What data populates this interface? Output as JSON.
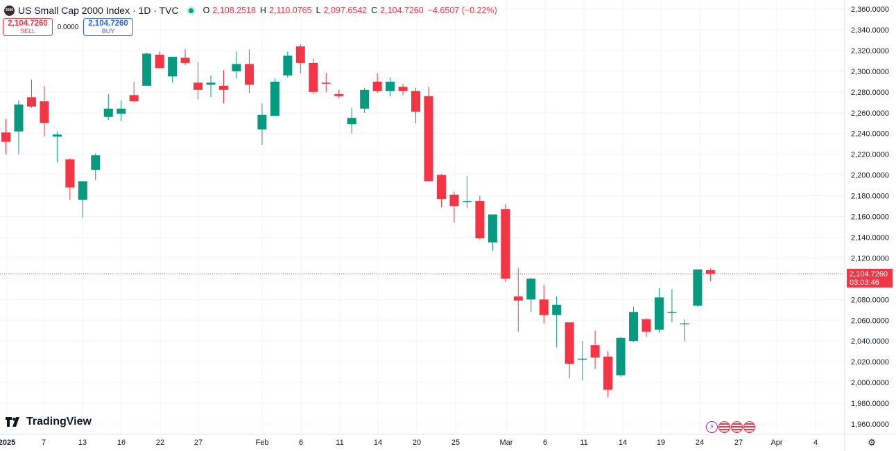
{
  "legend": {
    "symbol_logo": "2000",
    "title": "US Small Cap 2000 Index · 1D · TVC",
    "open_label": "O",
    "open": "2,108.2518",
    "high_label": "H",
    "high": "2,110.0765",
    "low_label": "L",
    "low": "2,097.6542",
    "close_label": "C",
    "close": "2,104.7260",
    "change": "−4.6507 (−0.22%)"
  },
  "trade": {
    "sell_price": "2,104.7260",
    "sell_label": "SELL",
    "spread": "0.0000",
    "buy_price": "2,104.7260",
    "buy_label": "BUY"
  },
  "price_tag": {
    "price": "2,104.7260",
    "countdown": "03:03:46"
  },
  "branding": {
    "name": "TradingView"
  },
  "colors": {
    "up": "#089981",
    "down": "#f23645",
    "grid": "#f0f3fa"
  },
  "icons": {
    "events": [
      "lightning-icon",
      "us-flag-icon",
      "us-flag-icon",
      "us-flag-icon"
    ],
    "settings": "gear-icon"
  },
  "chart_data": {
    "type": "candlestick",
    "y_ticks": [
      "2,360.0000",
      "2,340.0000",
      "2,320.0000",
      "2,300.0000",
      "2,280.0000",
      "2,260.0000",
      "2,240.0000",
      "2,220.0000",
      "2,200.0000",
      "2,180.0000",
      "2,160.0000",
      "2,140.0000",
      "2,120.0000",
      "2,100.0000",
      "2,080.0000",
      "2,060.0000",
      "2,040.0000",
      "2,020.0000",
      "2,000.0000",
      "1,980.0000",
      "1,960.0000"
    ],
    "y_tick_values": [
      2360,
      2340,
      2320,
      2300,
      2280,
      2260,
      2240,
      2220,
      2200,
      2180,
      2160,
      2140,
      2120,
      2100,
      2080,
      2060,
      2040,
      2020,
      2000,
      1980,
      1960
    ],
    "x_ticks": [
      "2025",
      "7",
      "13",
      "16",
      "22",
      "27",
      "Feb",
      "6",
      "11",
      "14",
      "20",
      "25",
      "Mar",
      "6",
      "11",
      "14",
      "19",
      "24",
      "27",
      "Apr",
      "4"
    ],
    "last_price_line": 2104.726,
    "candles": [
      {
        "o": 2241,
        "h": 2254,
        "l": 2220,
        "c": 2232
      },
      {
        "o": 2242,
        "h": 2272,
        "l": 2220,
        "c": 2268
      },
      {
        "o": 2275,
        "h": 2292,
        "l": 2265,
        "c": 2266
      },
      {
        "o": 2271,
        "h": 2286,
        "l": 2237,
        "c": 2250
      },
      {
        "o": 2237,
        "h": 2242,
        "l": 2212,
        "c": 2239
      },
      {
        "o": 2215,
        "h": 2216,
        "l": 2176,
        "c": 2188
      },
      {
        "o": 2176,
        "h": 2194,
        "l": 2159,
        "c": 2194
      },
      {
        "o": 2205,
        "h": 2221,
        "l": 2195,
        "c": 2219
      },
      {
        "o": 2256,
        "h": 2278,
        "l": 2253,
        "c": 2264
      },
      {
        "o": 2259,
        "h": 2272,
        "l": 2252,
        "c": 2264
      },
      {
        "o": 2277,
        "h": 2290,
        "l": 2270,
        "c": 2271
      },
      {
        "o": 2286,
        "h": 2318,
        "l": 2286,
        "c": 2317
      },
      {
        "o": 2316,
        "h": 2319,
        "l": 2303,
        "c": 2303
      },
      {
        "o": 2295,
        "h": 2314,
        "l": 2289,
        "c": 2314
      },
      {
        "o": 2313,
        "h": 2321,
        "l": 2306,
        "c": 2308
      },
      {
        "o": 2289,
        "h": 2309,
        "l": 2273,
        "c": 2282
      },
      {
        "o": 2287,
        "h": 2296,
        "l": 2275,
        "c": 2289
      },
      {
        "o": 2286,
        "h": 2301,
        "l": 2269,
        "c": 2282
      },
      {
        "o": 2300,
        "h": 2319,
        "l": 2293,
        "c": 2307
      },
      {
        "o": 2307,
        "h": 2321,
        "l": 2279,
        "c": 2287
      },
      {
        "o": 2244,
        "h": 2269,
        "l": 2229,
        "c": 2258
      },
      {
        "o": 2257,
        "h": 2293,
        "l": 2257,
        "c": 2290
      },
      {
        "o": 2296,
        "h": 2319,
        "l": 2294,
        "c": 2315
      },
      {
        "o": 2324,
        "h": 2326,
        "l": 2298,
        "c": 2308
      },
      {
        "o": 2308,
        "h": 2312,
        "l": 2278,
        "c": 2280
      },
      {
        "o": 2289,
        "h": 2298,
        "l": 2280,
        "c": 2288
      },
      {
        "o": 2278,
        "h": 2282,
        "l": 2274,
        "c": 2276
      },
      {
        "o": 2249,
        "h": 2265,
        "l": 2240,
        "c": 2255
      },
      {
        "o": 2264,
        "h": 2284,
        "l": 2260,
        "c": 2282
      },
      {
        "o": 2290,
        "h": 2298,
        "l": 2279,
        "c": 2281
      },
      {
        "o": 2281,
        "h": 2294,
        "l": 2276,
        "c": 2290
      },
      {
        "o": 2285,
        "h": 2288,
        "l": 2277,
        "c": 2281
      },
      {
        "o": 2281,
        "h": 2284,
        "l": 2250,
        "c": 2261
      },
      {
        "o": 2276,
        "h": 2285,
        "l": 2194,
        "c": 2194
      },
      {
        "o": 2200,
        "h": 2201,
        "l": 2169,
        "c": 2177
      },
      {
        "o": 2181,
        "h": 2184,
        "l": 2154,
        "c": 2170
      },
      {
        "o": 2175,
        "h": 2199,
        "l": 2168,
        "c": 2175
      },
      {
        "o": 2175,
        "h": 2180,
        "l": 2138,
        "c": 2139
      },
      {
        "o": 2135,
        "h": 2162,
        "l": 2127,
        "c": 2162
      },
      {
        "o": 2167,
        "h": 2172,
        "l": 2097,
        "c": 2100
      },
      {
        "o": 2083,
        "h": 2110,
        "l": 2049,
        "c": 2079
      },
      {
        "o": 2080,
        "h": 2101,
        "l": 2068,
        "c": 2100
      },
      {
        "o": 2080,
        "h": 2094,
        "l": 2057,
        "c": 2065
      },
      {
        "o": 2065,
        "h": 2083,
        "l": 2034,
        "c": 2075
      },
      {
        "o": 2058,
        "h": 2057,
        "l": 2004,
        "c": 2018
      },
      {
        "o": 2023,
        "h": 2040,
        "l": 2002,
        "c": 2023
      },
      {
        "o": 2036,
        "h": 2050,
        "l": 2013,
        "c": 2024
      },
      {
        "o": 2025,
        "h": 2030,
        "l": 1986,
        "c": 1993
      },
      {
        "o": 2007,
        "h": 2044,
        "l": 2005,
        "c": 2043
      },
      {
        "o": 2040,
        "h": 2073,
        "l": 2039,
        "c": 2068
      },
      {
        "o": 2061,
        "h": 2062,
        "l": 2044,
        "c": 2049
      },
      {
        "o": 2051,
        "h": 2091,
        "l": 2048,
        "c": 2082
      },
      {
        "o": 2068,
        "h": 2090,
        "l": 2058,
        "c": 2068
      },
      {
        "o": 2057,
        "h": 2061,
        "l": 2040,
        "c": 2057
      },
      {
        "o": 2074,
        "h": 2109,
        "l": 2073,
        "c": 2109
      },
      {
        "o": 2108.2518,
        "h": 2110.0765,
        "l": 2097.6542,
        "c": 2104.726
      }
    ]
  }
}
